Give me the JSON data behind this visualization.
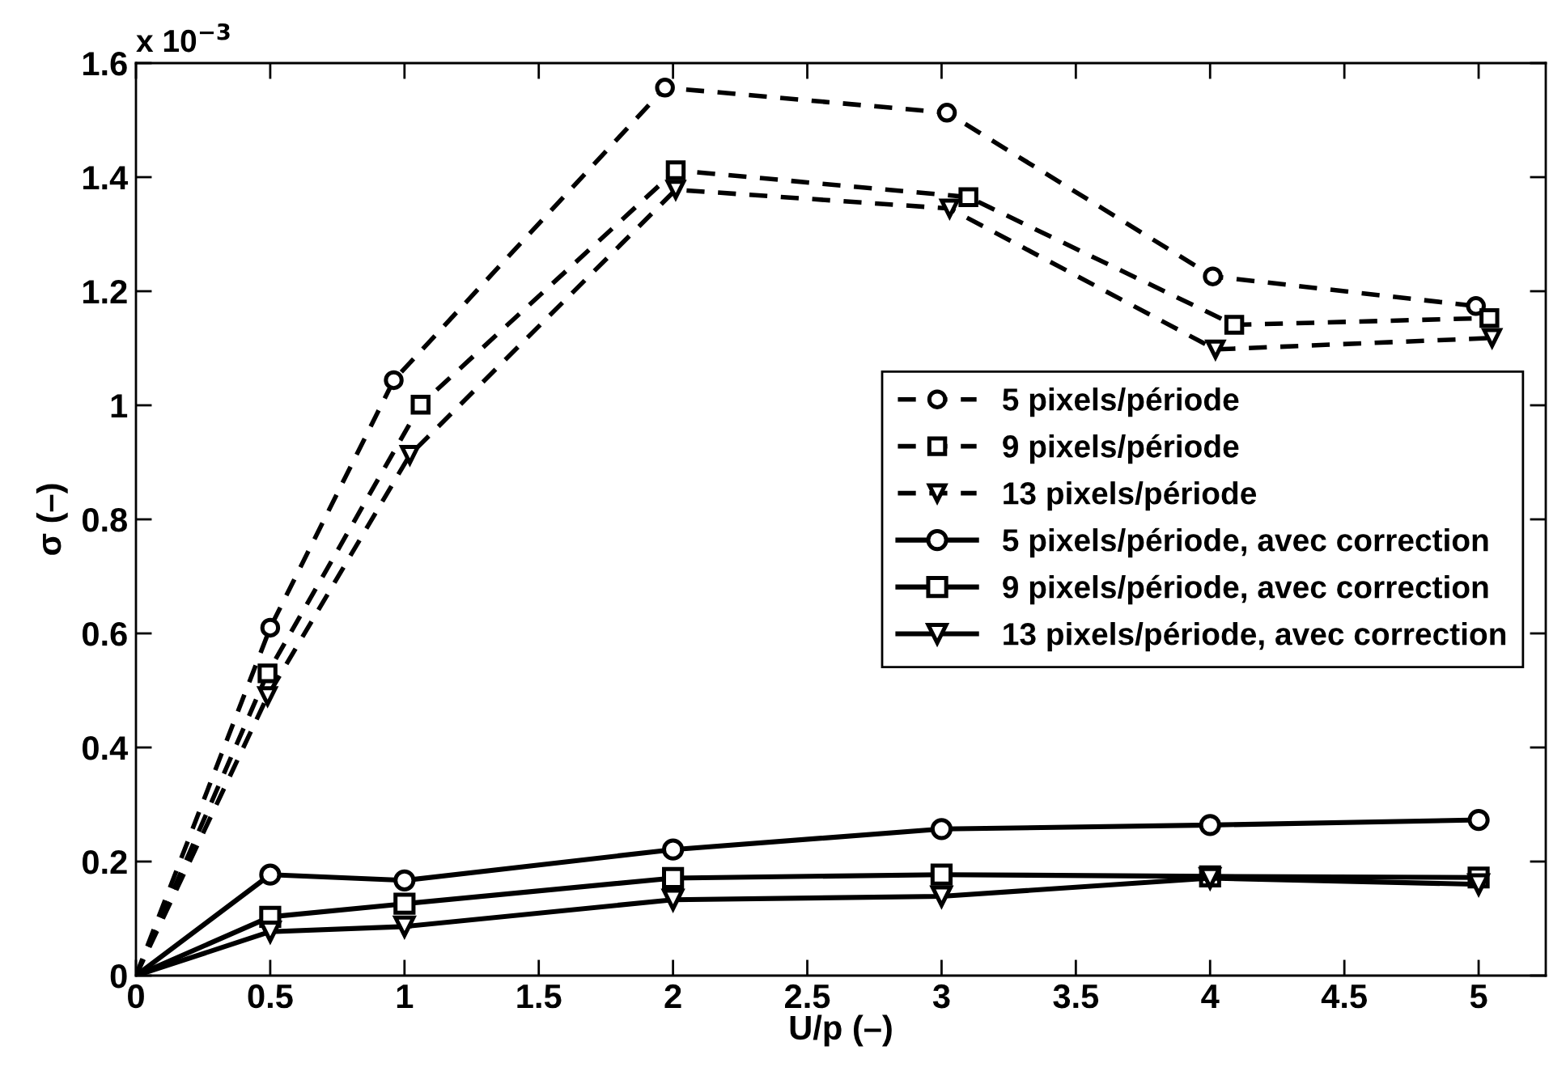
{
  "chart_data": {
    "type": "line",
    "xlabel": "U/p (–)",
    "ylabel": "σ (–)",
    "annotations": [
      "x 10$^{−3}$"
    ],
    "xlim": [
      0,
      5.25
    ],
    "ylim": [
      0,
      1.6
    ],
    "xticks": [
      0,
      0.5,
      1,
      1.5,
      2,
      2.5,
      3,
      3.5,
      4,
      4.5,
      5
    ],
    "yticks": [
      0,
      0.2,
      0.4,
      0.6,
      0.8,
      1,
      1.2,
      1.4,
      1.6
    ],
    "grid": false,
    "legend": "center right",
    "series": [
      {
        "name": "5 pixels/période",
        "color": "#000000",
        "marker": "circle",
        "line_style": "dashed",
        "x": [
          0,
          0.5,
          0.96,
          1.97,
          3.02,
          4.01,
          4.99
        ],
        "values": [
          0,
          0.61,
          1.044,
          1.557,
          1.513,
          1.226,
          1.174
        ]
      },
      {
        "name": "9 pixels/période",
        "color": "#000000",
        "marker": "square",
        "line_style": "dashed",
        "x": [
          0,
          0.49,
          1.06,
          2.01,
          3.1,
          4.09,
          5.04
        ],
        "values": [
          0,
          0.53,
          1.001,
          1.412,
          1.365,
          1.141,
          1.153
        ]
      },
      {
        "name": "13 pixels/période",
        "color": "#000000",
        "marker": "triangle",
        "line_style": "dashed",
        "x": [
          0,
          0.49,
          1.02,
          2.01,
          3.03,
          4.02,
          5.05
        ],
        "values": [
          0,
          0.49,
          0.913,
          1.378,
          1.345,
          1.098,
          1.118
        ]
      },
      {
        "name": "5 pixels/période, avec correction",
        "color": "#000000",
        "marker": "circle",
        "line_style": "solid",
        "x": [
          0,
          0.5,
          1,
          2,
          3,
          4,
          5
        ],
        "values": [
          0,
          0.177,
          0.167,
          0.221,
          0.257,
          0.264,
          0.273
        ]
      },
      {
        "name": "9 pixels/période, avec correction",
        "color": "#000000",
        "marker": "square",
        "line_style": "solid",
        "x": [
          0,
          0.5,
          1,
          2,
          3,
          4,
          5
        ],
        "values": [
          0,
          0.103,
          0.126,
          0.171,
          0.177,
          0.174,
          0.172
        ]
      },
      {
        "name": "13 pixels/période, avec correction",
        "color": "#000000",
        "marker": "triangle",
        "line_style": "solid",
        "x": [
          0,
          0.5,
          1,
          2,
          3,
          4,
          5
        ],
        "values": [
          0,
          0.077,
          0.086,
          0.133,
          0.139,
          0.171,
          0.16
        ]
      }
    ]
  }
}
